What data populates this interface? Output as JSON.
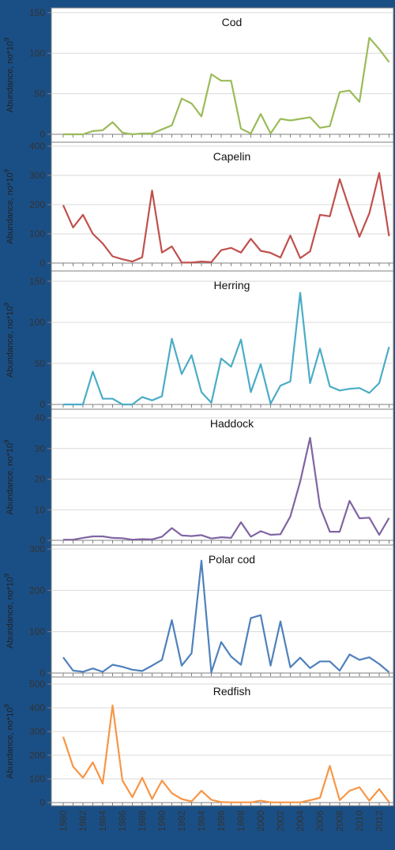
{
  "chart_data": [
    {
      "type": "line",
      "title": "Cod",
      "ylabel": "Abundance, no*10",
      "ylabel_sup": "9",
      "ylim": [
        0,
        150
      ],
      "yticks": [
        0,
        50,
        100,
        150
      ],
      "color": "#9bbb59",
      "x": [
        1980,
        1981,
        1982,
        1983,
        1984,
        1985,
        1986,
        1987,
        1988,
        1989,
        1990,
        1991,
        1992,
        1993,
        1994,
        1995,
        1996,
        1997,
        1998,
        1999,
        2000,
        2001,
        2002,
        2003,
        2004,
        2005,
        2006,
        2007,
        2008,
        2009,
        2010,
        2011,
        2012,
        2013
      ],
      "values": [
        0,
        0,
        0,
        4,
        5,
        15,
        2,
        0,
        1,
        1,
        6,
        11,
        44,
        38,
        22,
        74,
        66,
        66,
        7,
        1,
        25,
        1,
        19,
        17,
        19,
        21,
        8,
        10,
        52,
        54,
        40,
        119,
        105,
        89
      ]
    },
    {
      "type": "line",
      "title": "Capelin",
      "ylabel": "Abundance, no*10",
      "ylabel_sup": "9",
      "ylim": [
        0,
        400
      ],
      "yticks": [
        0,
        100,
        200,
        300,
        400
      ],
      "color": "#c0504d",
      "x": [
        1980,
        1981,
        1982,
        1983,
        1984,
        1985,
        1986,
        1987,
        1988,
        1989,
        1990,
        1991,
        1992,
        1993,
        1994,
        1995,
        1996,
        1997,
        1998,
        1999,
        2000,
        2001,
        2002,
        2003,
        2004,
        2005,
        2006,
        2007,
        2008,
        2009,
        2010,
        2011,
        2012,
        2013
      ],
      "values": [
        198,
        122,
        165,
        100,
        67,
        23,
        13,
        5,
        20,
        248,
        36,
        57,
        2,
        2,
        5,
        3,
        44,
        52,
        36,
        83,
        42,
        35,
        19,
        94,
        17,
        40,
        165,
        160,
        287,
        185,
        90,
        170,
        308,
        92
      ]
    },
    {
      "type": "line",
      "title": "Herring",
      "ylabel": "Abundance, no*10",
      "ylabel_sup": "9",
      "ylim": [
        0,
        150
      ],
      "yticks": [
        0,
        50,
        100,
        150
      ],
      "color": "#4bacc6",
      "x": [
        1980,
        1981,
        1982,
        1983,
        1984,
        1985,
        1986,
        1987,
        1988,
        1989,
        1990,
        1991,
        1992,
        1993,
        1994,
        1995,
        1996,
        1997,
        1998,
        1999,
        2000,
        2001,
        2002,
        2003,
        2004,
        2005,
        2006,
        2007,
        2008,
        2009,
        2010,
        2011,
        2012,
        2013
      ],
      "values": [
        0,
        0,
        0,
        40,
        7,
        7,
        0,
        0,
        9,
        5,
        10,
        80,
        37,
        60,
        15,
        2,
        56,
        46,
        79,
        15,
        49,
        1,
        23,
        28,
        136,
        26,
        68,
        22,
        17,
        19,
        20,
        14,
        26,
        70
      ]
    },
    {
      "type": "line",
      "title": "Haddock",
      "ylabel": "Abundance, no*10",
      "ylabel_sup": "9",
      "ylim": [
        0,
        40
      ],
      "yticks": [
        0,
        10,
        20,
        30,
        40
      ],
      "color": "#8064a2",
      "x": [
        1980,
        1981,
        1982,
        1983,
        1984,
        1985,
        1986,
        1987,
        1988,
        1989,
        1990,
        1991,
        1992,
        1993,
        1994,
        1995,
        1996,
        1997,
        1998,
        1999,
        2000,
        2001,
        2002,
        2003,
        2004,
        2005,
        2006,
        2007,
        2008,
        2009,
        2010,
        2011,
        2012,
        2013
      ],
      "values": [
        0.2,
        0.2,
        0.8,
        1.3,
        1.3,
        0.8,
        0.7,
        0.2,
        0.4,
        0.3,
        1.2,
        4.0,
        1.6,
        1.4,
        1.7,
        0.6,
        1.0,
        0.8,
        5.9,
        1.2,
        3.0,
        1.8,
        2.0,
        7.8,
        19.2,
        33.5,
        11.0,
        2.8,
        2.8,
        12.9,
        7.2,
        7.4,
        1.8,
        7.3
      ]
    },
    {
      "type": "line",
      "title": "Polar cod",
      "ylabel": "Abundance, no*10",
      "ylabel_sup": "9",
      "ylim": [
        0,
        300
      ],
      "yticks": [
        0,
        100,
        200,
        300
      ],
      "color": "#4f81bd",
      "x": [
        1980,
        1981,
        1982,
        1983,
        1984,
        1985,
        1986,
        1987,
        1988,
        1989,
        1990,
        1991,
        1992,
        1993,
        1994,
        1995,
        1996,
        1997,
        1998,
        1999,
        2000,
        2001,
        2002,
        2003,
        2004,
        2005,
        2006,
        2007,
        2008,
        2009,
        2010,
        2011,
        2012,
        2013
      ],
      "values": [
        38,
        6,
        3,
        11,
        3,
        20,
        15,
        8,
        5,
        18,
        32,
        128,
        18,
        48,
        272,
        2,
        75,
        40,
        20,
        133,
        140,
        18,
        125,
        14,
        37,
        12,
        28,
        28,
        6,
        45,
        32,
        38,
        22,
        2
      ]
    },
    {
      "type": "line",
      "title": "Redfish",
      "ylabel": "Abundance, no*10",
      "ylabel_sup": "9",
      "ylim": [
        0,
        500
      ],
      "yticks": [
        0,
        100,
        200,
        300,
        400,
        500
      ],
      "color": "#f79646",
      "x": [
        1980,
        1981,
        1982,
        1983,
        1984,
        1985,
        1986,
        1987,
        1988,
        1989,
        1990,
        1991,
        1992,
        1993,
        1994,
        1995,
        1996,
        1997,
        1998,
        1999,
        2000,
        2001,
        2002,
        2003,
        2004,
        2005,
        2006,
        2007,
        2008,
        2009,
        2010,
        2011,
        2012,
        2013
      ],
      "values": [
        278,
        152,
        105,
        170,
        80,
        410,
        93,
        23,
        105,
        15,
        93,
        40,
        15,
        5,
        50,
        12,
        2,
        1,
        1,
        1,
        8,
        1,
        1,
        1,
        1,
        10,
        20,
        155,
        10,
        50,
        65,
        8,
        57,
        2
      ]
    }
  ],
  "x_tick_labels": [
    "1980",
    "1982",
    "1984",
    "1986",
    "1988",
    "1990",
    "1992",
    "1994",
    "1996",
    "1998",
    "2000",
    "2002",
    "2004",
    "2006",
    "2008",
    "2010",
    "2012"
  ]
}
